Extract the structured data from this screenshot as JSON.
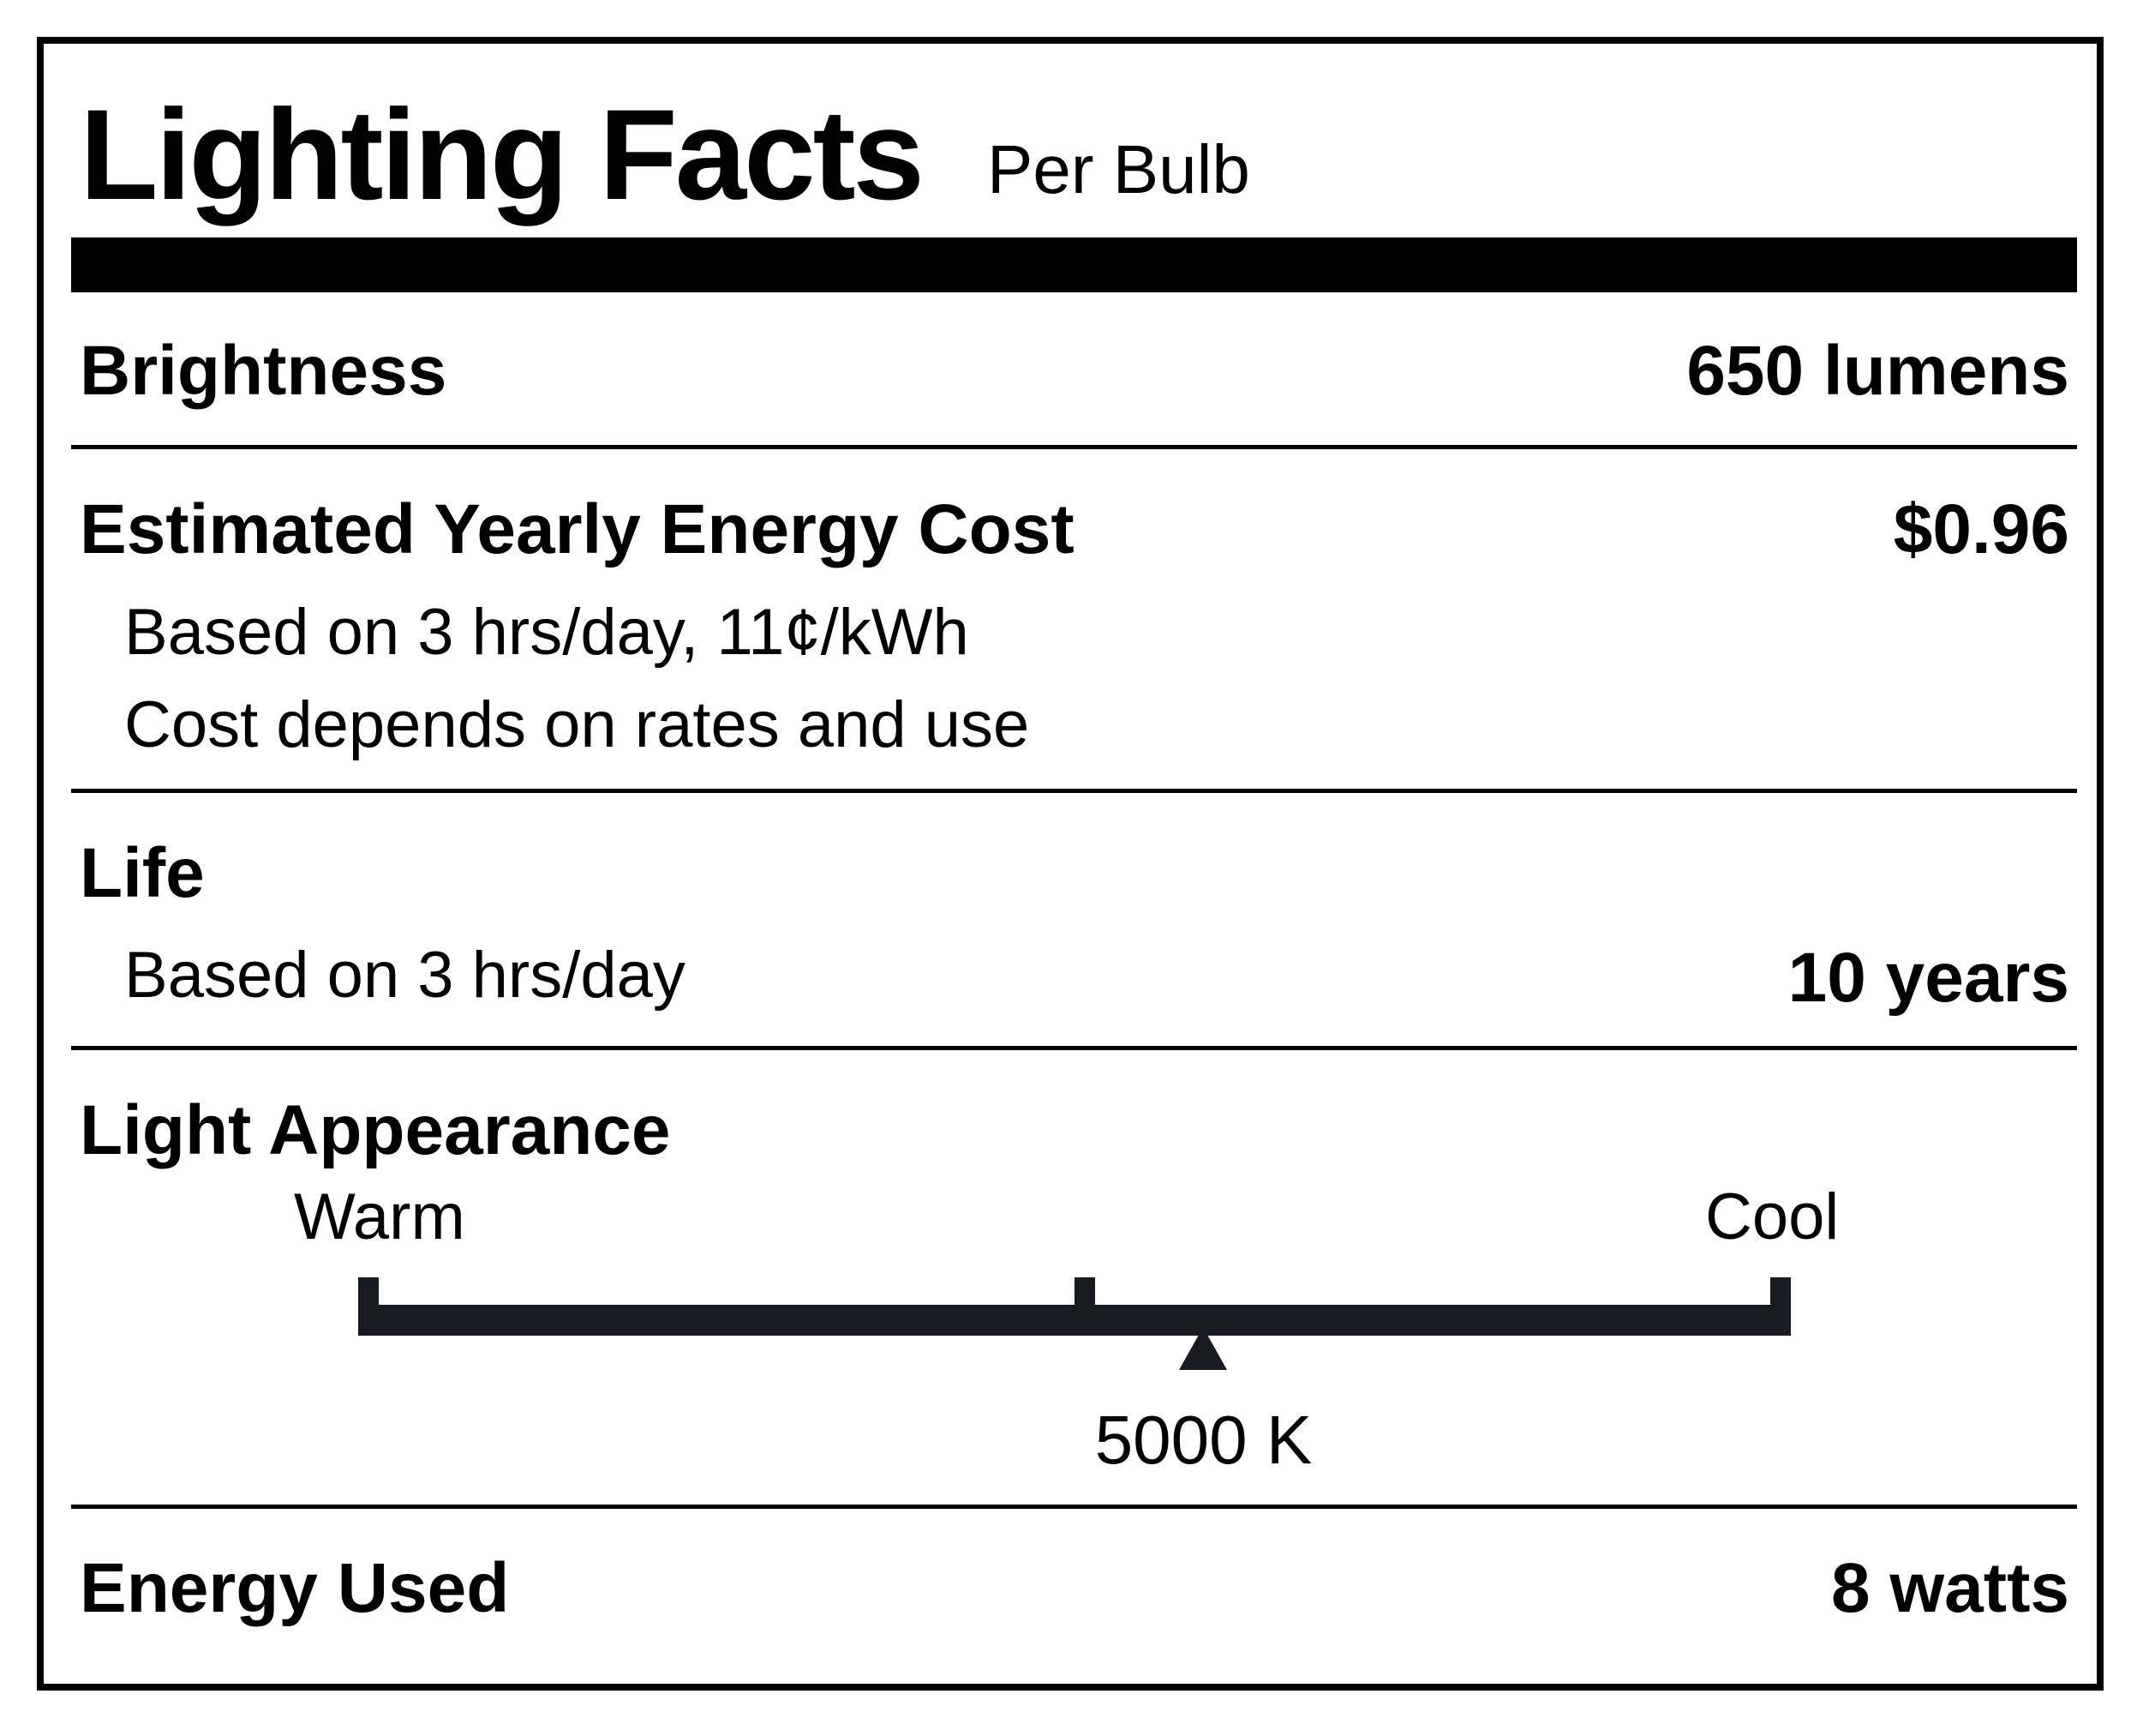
{
  "label": {
    "title": "Lighting Facts",
    "subtitle": "Per Bulb"
  },
  "brightness": {
    "label": "Brightness",
    "value": "650 lumens"
  },
  "energy_cost": {
    "label": "Estimated Yearly Energy Cost",
    "value": "$0.96",
    "note_1": "Based on 3 hrs/day, 11¢/kWh",
    "note_2": "Cost depends on rates and use"
  },
  "life": {
    "label": "Life",
    "note": "Based on 3 hrs/day",
    "value": "10 years"
  },
  "light_appearance": {
    "label": "Light Appearance",
    "warm_label": "Warm",
    "cool_label": "Cool",
    "value_text": "5000 K",
    "position_fraction": 0.59
  },
  "energy_used": {
    "label": "Energy Used",
    "value": "8 watts"
  }
}
